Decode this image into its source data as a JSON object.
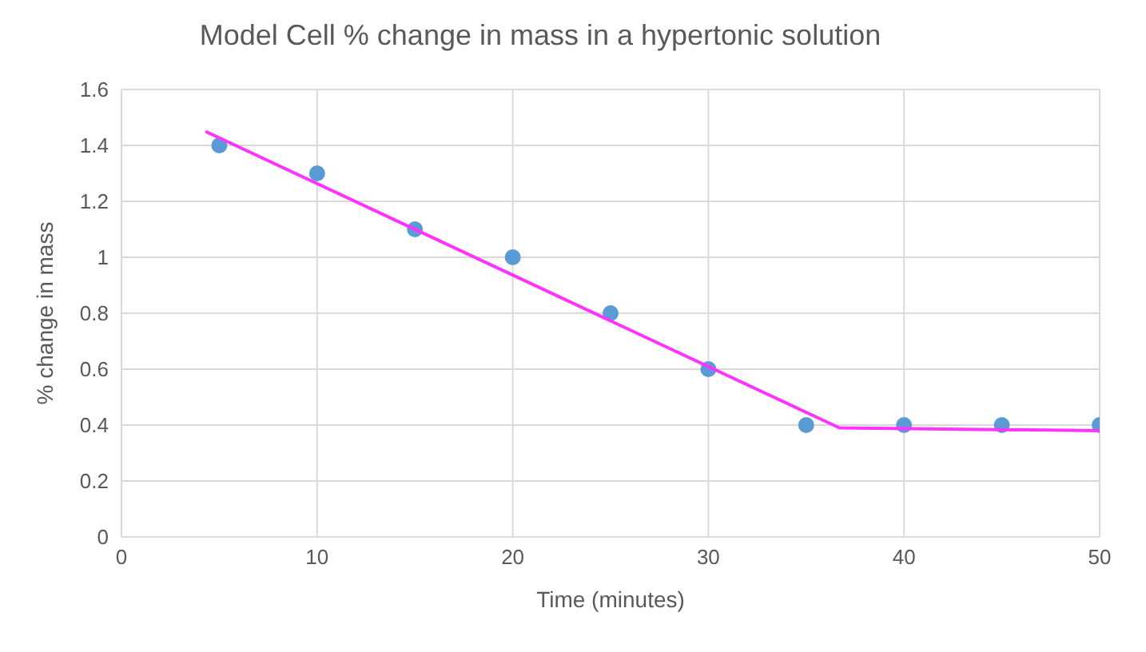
{
  "chart_data": {
    "type": "scatter",
    "title": "Model Cell % change in mass in a hypertonic solution",
    "xlabel": "Time (minutes)",
    "ylabel": "% change in mass",
    "xlim": [
      0,
      50
    ],
    "xticks": [
      0,
      10,
      20,
      30,
      40,
      50
    ],
    "ylim": [
      0,
      1.6
    ],
    "yticks": [
      0,
      0.2,
      0.4,
      0.6,
      0.8,
      1,
      1.2,
      1.4,
      1.6
    ],
    "grid": true,
    "marker": "circle",
    "series": [
      {
        "type": "scatter",
        "color": "#5b9bd5",
        "x": [
          5,
          10,
          15,
          20,
          25,
          30,
          35,
          40,
          45,
          50
        ],
        "values": [
          1.4,
          1.3,
          1.1,
          1.0,
          0.8,
          0.6,
          0.4,
          0.4,
          0.4,
          0.4
        ]
      },
      {
        "type": "line",
        "color": "#ff33ff",
        "marker": "none",
        "x": [
          4.3,
          36.7,
          50
        ],
        "values": [
          1.45,
          0.39,
          0.38
        ]
      }
    ]
  }
}
